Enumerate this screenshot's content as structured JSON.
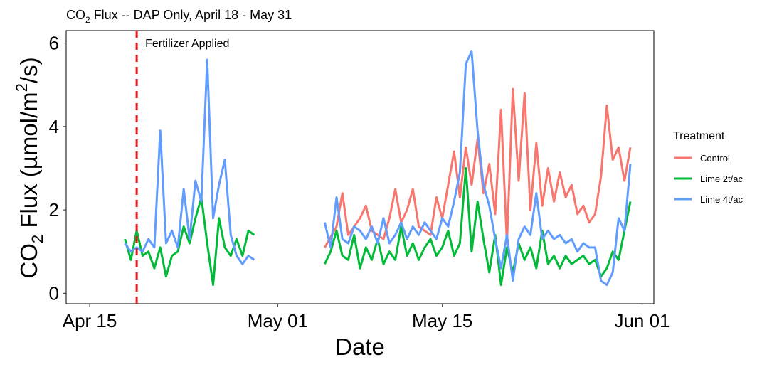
{
  "chart_data": {
    "type": "line",
    "title_main": "CO",
    "title_sub": "2",
    "title_rest": " Flux -- DAP Only, April 18 - May 31",
    "xlabel": "Date",
    "ylabel_co": "CO",
    "ylabel_sub": "2",
    "ylabel_mid": " Flux (µmol/m",
    "ylabel_sup": "2",
    "ylabel_end": "/s)",
    "xlim": [
      "2023-04-13",
      "2023-06-02"
    ],
    "ylim": [
      -0.25,
      6.3
    ],
    "x_ticks": [
      {
        "date": "2023-04-15",
        "label": "Apr 15"
      },
      {
        "date": "2023-05-01",
        "label": "May 01"
      },
      {
        "date": "2023-05-15",
        "label": "May 15"
      },
      {
        "date": "2023-06-01",
        "label": "Jun 01"
      }
    ],
    "y_ticks": [
      0,
      2,
      4,
      6
    ],
    "grid": false,
    "annotation": {
      "date": "2023-04-19",
      "text": "Fertilizer Applied",
      "color": "#e41a1c"
    },
    "legend": {
      "title": "Treatment",
      "position": "right"
    },
    "series": [
      {
        "name": "Control",
        "color": "#f8766d",
        "points": [
          [
            "2023-05-05",
            1.1
          ],
          [
            "2023-05-06",
            1.6
          ],
          [
            "2023-05-06T12",
            2.4
          ],
          [
            "2023-05-07",
            1.4
          ],
          [
            "2023-05-08",
            1.8
          ],
          [
            "2023-05-08T12",
            2.1
          ],
          [
            "2023-05-09",
            1.5
          ],
          [
            "2023-05-10",
            1.3
          ],
          [
            "2023-05-10T12",
            1.8
          ],
          [
            "2023-05-11",
            2.5
          ],
          [
            "2023-05-11T12",
            1.7
          ],
          [
            "2023-05-12",
            2.0
          ],
          [
            "2023-05-12T12",
            2.5
          ],
          [
            "2023-05-13",
            1.6
          ],
          [
            "2023-05-14",
            1.4
          ],
          [
            "2023-05-14T12",
            2.3
          ],
          [
            "2023-05-15",
            1.8
          ],
          [
            "2023-05-15T12",
            2.6
          ],
          [
            "2023-05-16",
            3.4
          ],
          [
            "2023-05-16T12",
            2.3
          ],
          [
            "2023-05-17",
            3.5
          ],
          [
            "2023-05-17T12",
            2.6
          ],
          [
            "2023-05-18",
            3.7
          ],
          [
            "2023-05-18T12",
            2.4
          ],
          [
            "2023-05-19",
            3.1
          ],
          [
            "2023-05-19T12",
            1.9
          ],
          [
            "2023-05-20",
            4.4
          ],
          [
            "2023-05-20T12",
            1.2
          ],
          [
            "2023-05-21",
            4.9
          ],
          [
            "2023-05-21T12",
            2.7
          ],
          [
            "2023-05-22",
            4.8
          ],
          [
            "2023-05-22T12",
            2.0
          ],
          [
            "2023-05-23",
            3.6
          ],
          [
            "2023-05-23T12",
            2.1
          ],
          [
            "2023-05-24",
            3.0
          ],
          [
            "2023-05-24T12",
            2.2
          ],
          [
            "2023-05-25",
            2.9
          ],
          [
            "2023-05-25T12",
            2.3
          ],
          [
            "2023-05-26",
            2.6
          ],
          [
            "2023-05-26T12",
            1.9
          ],
          [
            "2023-05-27",
            2.1
          ],
          [
            "2023-05-27T12",
            1.7
          ],
          [
            "2023-05-28",
            1.9
          ],
          [
            "2023-05-28T12",
            2.8
          ],
          [
            "2023-05-29",
            4.5
          ],
          [
            "2023-05-29T12",
            3.2
          ],
          [
            "2023-05-30",
            3.5
          ],
          [
            "2023-05-30T12",
            2.7
          ],
          [
            "2023-05-31",
            3.5
          ]
        ]
      },
      {
        "name": "Lime 2t/ac",
        "color": "#00ba38",
        "points": [
          [
            "2023-04-18",
            1.3
          ],
          [
            "2023-04-18T12",
            0.8
          ],
          [
            "2023-04-19",
            1.5
          ],
          [
            "2023-04-19T12",
            0.9
          ],
          [
            "2023-04-20",
            1.0
          ],
          [
            "2023-04-20T12",
            0.6
          ],
          [
            "2023-04-21",
            1.1
          ],
          [
            "2023-04-21T12",
            0.4
          ],
          [
            "2023-04-22",
            0.9
          ],
          [
            "2023-04-22T12",
            1.0
          ],
          [
            "2023-04-23",
            1.6
          ],
          [
            "2023-04-23T12",
            1.2
          ],
          [
            "2023-04-24",
            1.8
          ],
          [
            "2023-04-24T12",
            2.3
          ],
          [
            "2023-04-25",
            1.2
          ],
          [
            "2023-04-25T12",
            0.2
          ],
          [
            "2023-04-26",
            1.8
          ],
          [
            "2023-04-26T12",
            1.1
          ],
          [
            "2023-04-27",
            0.9
          ],
          [
            "2023-04-27T12",
            1.3
          ],
          [
            "2023-04-28",
            0.9
          ],
          [
            "2023-04-28T12",
            1.5
          ],
          [
            "2023-04-29",
            1.4
          ],
          [
            null,
            null
          ],
          [
            "2023-05-05",
            0.7
          ],
          [
            "2023-05-05T12",
            1.0
          ],
          [
            "2023-05-06",
            1.5
          ],
          [
            "2023-05-06T12",
            0.9
          ],
          [
            "2023-05-07",
            0.8
          ],
          [
            "2023-05-07T12",
            1.4
          ],
          [
            "2023-05-08",
            0.6
          ],
          [
            "2023-05-08T12",
            1.1
          ],
          [
            "2023-05-09",
            0.8
          ],
          [
            "2023-05-09T12",
            1.3
          ],
          [
            "2023-05-10",
            0.7
          ],
          [
            "2023-05-10T12",
            1.0
          ],
          [
            "2023-05-11",
            0.8
          ],
          [
            "2023-05-11T12",
            1.6
          ],
          [
            "2023-05-12",
            0.9
          ],
          [
            "2023-05-12T12",
            1.2
          ],
          [
            "2023-05-13",
            0.8
          ],
          [
            "2023-05-13T12",
            1.1
          ],
          [
            "2023-05-14",
            1.3
          ],
          [
            "2023-05-14T12",
            0.9
          ],
          [
            "2023-05-15",
            1.1
          ],
          [
            "2023-05-15T12",
            1.5
          ],
          [
            "2023-05-16",
            0.9
          ],
          [
            "2023-05-16T12",
            1.2
          ],
          [
            "2023-05-17",
            3.0
          ],
          [
            "2023-05-17T12",
            1.0
          ],
          [
            "2023-05-18",
            2.2
          ],
          [
            "2023-05-18T12",
            1.3
          ],
          [
            "2023-05-19",
            0.5
          ],
          [
            "2023-05-19T12",
            1.4
          ],
          [
            "2023-05-20",
            0.2
          ],
          [
            "2023-05-20T12",
            1.1
          ],
          [
            "2023-05-21",
            0.5
          ],
          [
            "2023-05-21T12",
            1.2
          ],
          [
            "2023-05-22",
            0.8
          ],
          [
            "2023-05-22T12",
            1.1
          ],
          [
            "2023-05-23",
            0.6
          ],
          [
            "2023-05-23T12",
            1.5
          ],
          [
            "2023-05-24",
            0.7
          ],
          [
            "2023-05-24T12",
            0.9
          ],
          [
            "2023-05-25",
            0.6
          ],
          [
            "2023-05-25T12",
            0.9
          ],
          [
            "2023-05-26",
            0.7
          ],
          [
            "2023-05-26T12",
            0.8
          ],
          [
            "2023-05-27",
            0.9
          ],
          [
            "2023-05-27T12",
            0.7
          ],
          [
            "2023-05-28",
            0.8
          ],
          [
            "2023-05-28T12",
            0.4
          ],
          [
            "2023-05-29",
            0.6
          ],
          [
            "2023-05-29T12",
            1.0
          ],
          [
            "2023-05-30",
            0.8
          ],
          [
            "2023-05-30T12",
            1.5
          ],
          [
            "2023-05-31",
            2.2
          ]
        ]
      },
      {
        "name": "Lime 4t/ac",
        "color": "#619cff",
        "points": [
          [
            "2023-04-18",
            1.2
          ],
          [
            "2023-04-18T12",
            1.0
          ],
          [
            "2023-04-19",
            1.1
          ],
          [
            "2023-04-19T12",
            1.0
          ],
          [
            "2023-04-20",
            1.3
          ],
          [
            "2023-04-20T12",
            1.1
          ],
          [
            "2023-04-21",
            3.9
          ],
          [
            "2023-04-21T12",
            1.2
          ],
          [
            "2023-04-22",
            1.5
          ],
          [
            "2023-04-22T12",
            1.1
          ],
          [
            "2023-04-23",
            2.5
          ],
          [
            "2023-04-23T12",
            1.3
          ],
          [
            "2023-04-24",
            2.7
          ],
          [
            "2023-04-24T12",
            2.2
          ],
          [
            "2023-04-25",
            5.6
          ],
          [
            "2023-04-25T12",
            1.8
          ],
          [
            "2023-04-26",
            2.6
          ],
          [
            "2023-04-26T12",
            3.2
          ],
          [
            "2023-04-27",
            1.4
          ],
          [
            "2023-04-27T12",
            0.9
          ],
          [
            "2023-04-28",
            0.7
          ],
          [
            "2023-04-28T12",
            0.9
          ],
          [
            "2023-04-29",
            0.8
          ],
          [
            null,
            null
          ],
          [
            "2023-05-05",
            1.7
          ],
          [
            "2023-05-05T12",
            1.1
          ],
          [
            "2023-05-06",
            2.3
          ],
          [
            "2023-05-06T12",
            1.3
          ],
          [
            "2023-05-07",
            1.2
          ],
          [
            "2023-05-07T12",
            1.6
          ],
          [
            "2023-05-08",
            1.5
          ],
          [
            "2023-05-08T12",
            1.3
          ],
          [
            "2023-05-09",
            1.6
          ],
          [
            "2023-05-09T12",
            1.2
          ],
          [
            "2023-05-10",
            1.8
          ],
          [
            "2023-05-10T12",
            1.2
          ],
          [
            "2023-05-11",
            1.4
          ],
          [
            "2023-05-11T12",
            1.7
          ],
          [
            "2023-05-12",
            1.3
          ],
          [
            "2023-05-12T12",
            1.6
          ],
          [
            "2023-05-13",
            1.4
          ],
          [
            "2023-05-13T12",
            1.7
          ],
          [
            "2023-05-14",
            1.5
          ],
          [
            "2023-05-14T12",
            1.3
          ],
          [
            "2023-05-15",
            1.8
          ],
          [
            "2023-05-15T12",
            1.6
          ],
          [
            "2023-05-16",
            2.2
          ],
          [
            "2023-05-16T12",
            2.9
          ],
          [
            "2023-05-17",
            5.5
          ],
          [
            "2023-05-17T12",
            5.8
          ],
          [
            "2023-05-18",
            3.9
          ],
          [
            "2023-05-18T12",
            2.6
          ],
          [
            "2023-05-19",
            2.1
          ],
          [
            "2023-05-19T12",
            1.3
          ],
          [
            "2023-05-20",
            0.6
          ],
          [
            "2023-05-20T12",
            1.4
          ],
          [
            "2023-05-21",
            0.3
          ],
          [
            "2023-05-21T12",
            1.3
          ],
          [
            "2023-05-22",
            1.6
          ],
          [
            "2023-05-22T12",
            1.4
          ],
          [
            "2023-05-23",
            2.4
          ],
          [
            "2023-05-23T12",
            1.3
          ],
          [
            "2023-05-24",
            1.5
          ],
          [
            "2023-05-24T12",
            1.3
          ],
          [
            "2023-05-25",
            1.4
          ],
          [
            "2023-05-25T12",
            1.2
          ],
          [
            "2023-05-26",
            1.3
          ],
          [
            "2023-05-26T12",
            1.0
          ],
          [
            "2023-05-27",
            1.2
          ],
          [
            "2023-05-27T12",
            1.1
          ],
          [
            "2023-05-28",
            1.1
          ],
          [
            "2023-05-28T12",
            0.3
          ],
          [
            "2023-05-29",
            0.2
          ],
          [
            "2023-05-29T12",
            0.5
          ],
          [
            "2023-05-30",
            1.8
          ],
          [
            "2023-05-30T12",
            1.5
          ],
          [
            "2023-05-31",
            3.1
          ]
        ]
      }
    ]
  }
}
